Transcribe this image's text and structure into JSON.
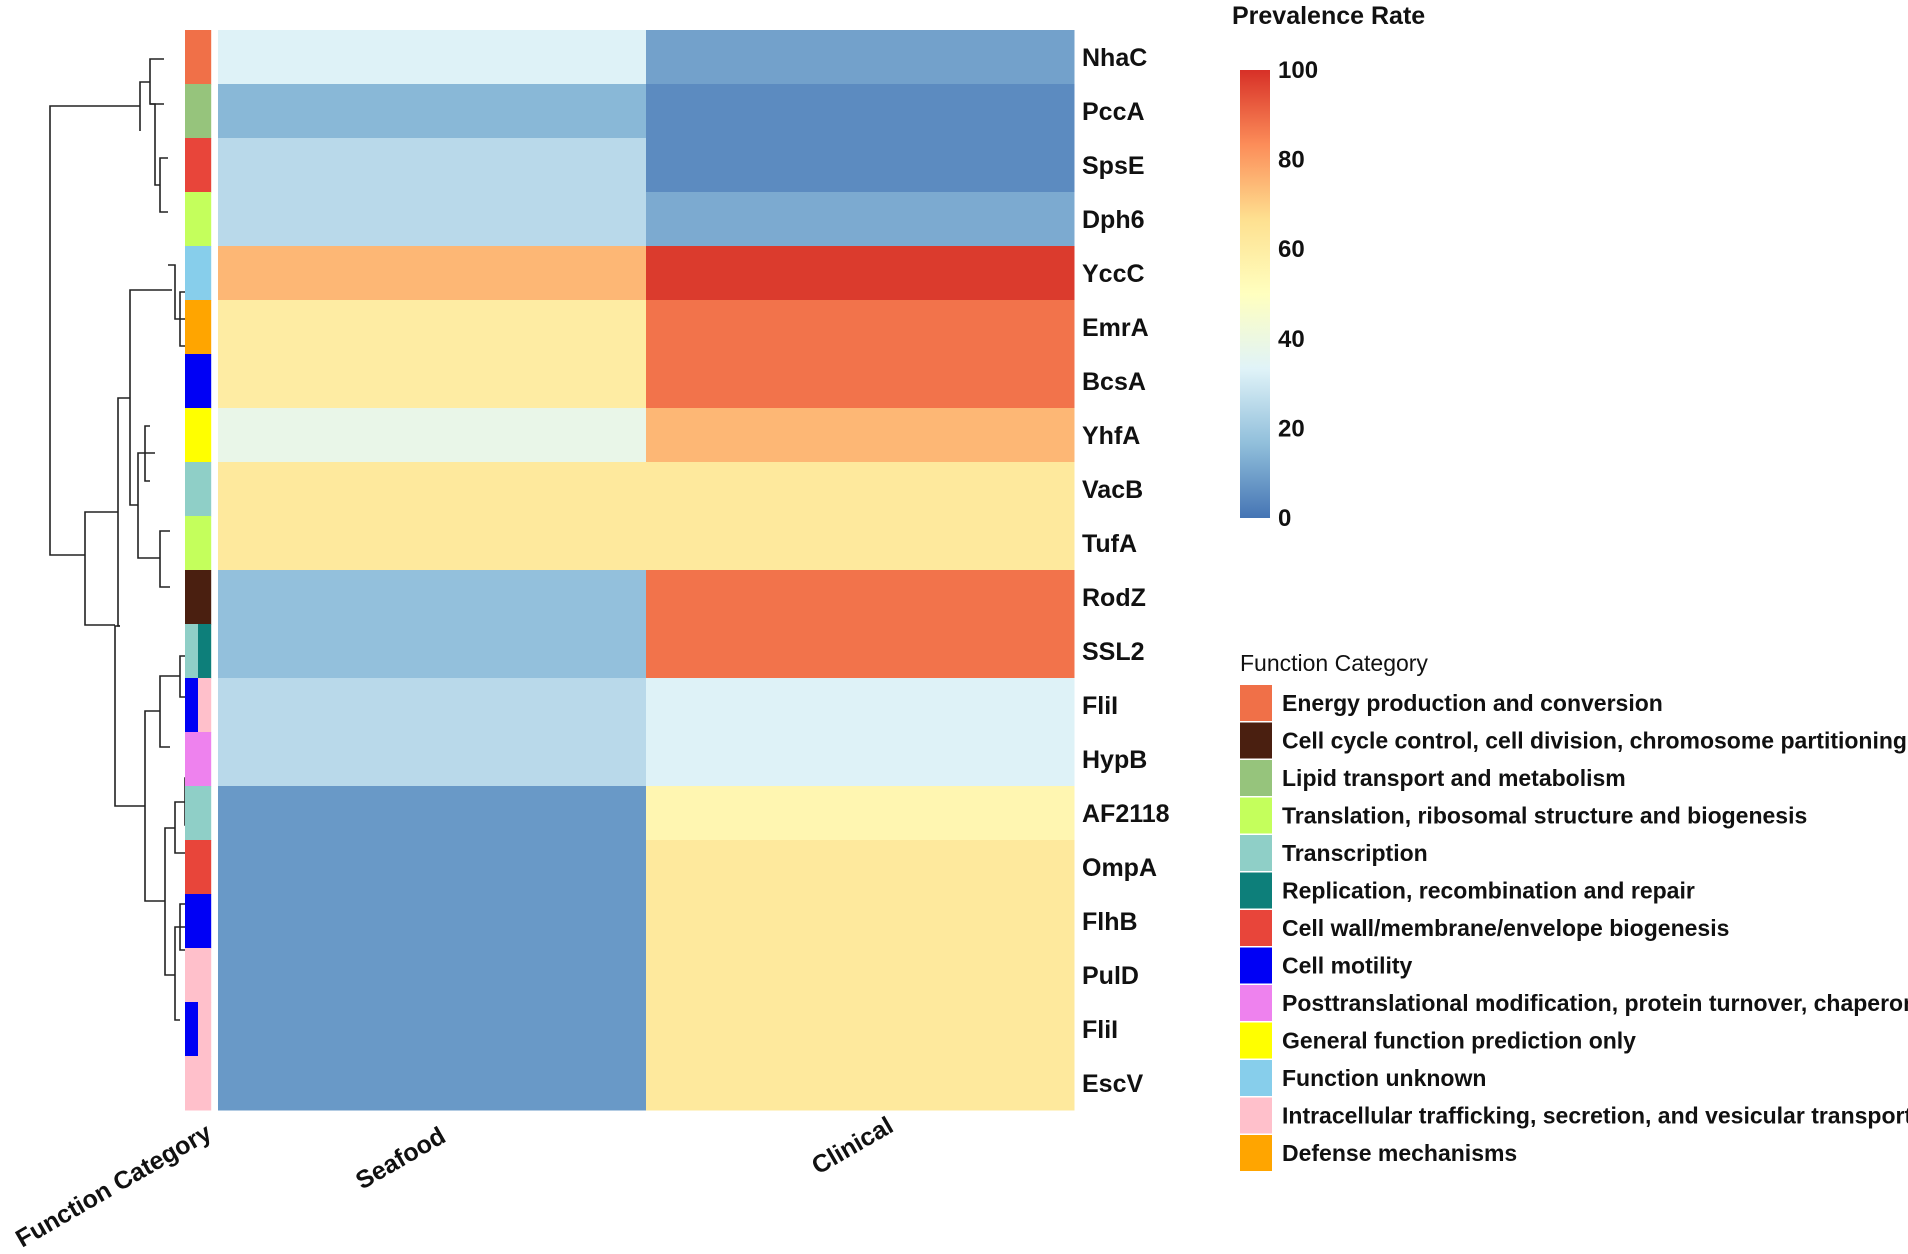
{
  "chart_data": {
    "type": "heatmap",
    "rows": [
      "NhaC",
      "PccA",
      "SpsE",
      "Dph6",
      "YccC",
      "EmrA",
      "BcsA",
      "YhfA",
      "VacB",
      "TufA",
      "RodZ",
      "SSL2",
      "FliI",
      "HypB",
      "AF2118",
      "OmpA",
      "FlhB",
      "PulD",
      "FliI",
      "EscV"
    ],
    "columns": [
      "Seafood",
      "Clinical"
    ],
    "values": [
      [
        33,
        10
      ],
      [
        15,
        5
      ],
      [
        25,
        5
      ],
      [
        25,
        12
      ],
      [
        75,
        98
      ],
      [
        60,
        88
      ],
      [
        60,
        88
      ],
      [
        38,
        75
      ],
      [
        62,
        62
      ],
      [
        62,
        62
      ],
      [
        17,
        88
      ],
      [
        17,
        88
      ],
      [
        25,
        33
      ],
      [
        25,
        33
      ],
      [
        8,
        55
      ],
      [
        8,
        62
      ],
      [
        8,
        62
      ],
      [
        8,
        62
      ],
      [
        8,
        62
      ],
      [
        8,
        62
      ]
    ],
    "row_categories": [
      [
        "Energy production and conversion"
      ],
      [
        "Lipid transport and metabolism"
      ],
      [
        "Cell wall/membrane/envelope biogenesis"
      ],
      [
        "Translation, ribosomal structure and biogenesis"
      ],
      [
        "Function unknown"
      ],
      [
        "Defense mechanisms"
      ],
      [
        "Cell motility"
      ],
      [
        "General function prediction only"
      ],
      [
        "Transcription"
      ],
      [
        "Translation, ribosomal structure and biogenesis"
      ],
      [
        "Cell cycle control, cell division, chromosome partitioning"
      ],
      [
        "Transcription",
        "Replication, recombination and repair"
      ],
      [
        "Cell motility",
        "Intracellular trafficking, secretion, and vesicular transport"
      ],
      [
        "Posttranslational modification, protein turnover, chaperones"
      ],
      [
        "Transcription"
      ],
      [
        "Cell wall/membrane/envelope biogenesis"
      ],
      [
        "Cell motility"
      ],
      [
        "Intracellular trafficking, secretion, and vesicular transport"
      ],
      [
        "Cell motility",
        "Intracellular trafficking, secretion, and vesicular transport"
      ],
      [
        "Intracellular trafficking, secretion, and vesicular transport"
      ]
    ],
    "category_axis_label": "Function Category",
    "color_scale": {
      "title": "Prevalence Rate",
      "range": [
        0,
        100
      ],
      "ticks": [
        "0",
        "20",
        "40",
        "60",
        "80",
        "100"
      ],
      "stops": [
        "#4575b4",
        "#91bfdb",
        "#e0f3f8",
        "#ffffbf",
        "#fee090",
        "#fc8d59",
        "#d73027"
      ]
    },
    "legend": {
      "title": "Function Category",
      "entries": [
        {
          "label": "Energy production and conversion",
          "color": "#f07048"
        },
        {
          "label": "Cell cycle control, cell division, chromosome partitioning",
          "color": "#4a1f10"
        },
        {
          "label": "Lipid transport and metabolism",
          "color": "#96c47c"
        },
        {
          "label": "Translation, ribosomal structure and biogenesis",
          "color": "#c4ff5c"
        },
        {
          "label": "Transcription",
          "color": "#8fcfc7"
        },
        {
          "label": "Replication, recombination and repair",
          "color": "#0d7f7a"
        },
        {
          "label": "Cell wall/membrane/envelope biogenesis",
          "color": "#e8453a"
        },
        {
          "label": "Cell motility",
          "color": "#0000f5"
        },
        {
          "label": "Posttranslational modification, protein turnover, chaperones",
          "color": "#ee82ee"
        },
        {
          "label": "General function prediction only",
          "color": "#ffff00"
        },
        {
          "label": "Function unknown",
          "color": "#87ceeb"
        },
        {
          "label": "Intracellular trafficking, secretion, and vesicular transport",
          "color": "#ffc0cb"
        },
        {
          "label": "Defense mechanisms",
          "color": "#ffa500"
        }
      ]
    }
  }
}
